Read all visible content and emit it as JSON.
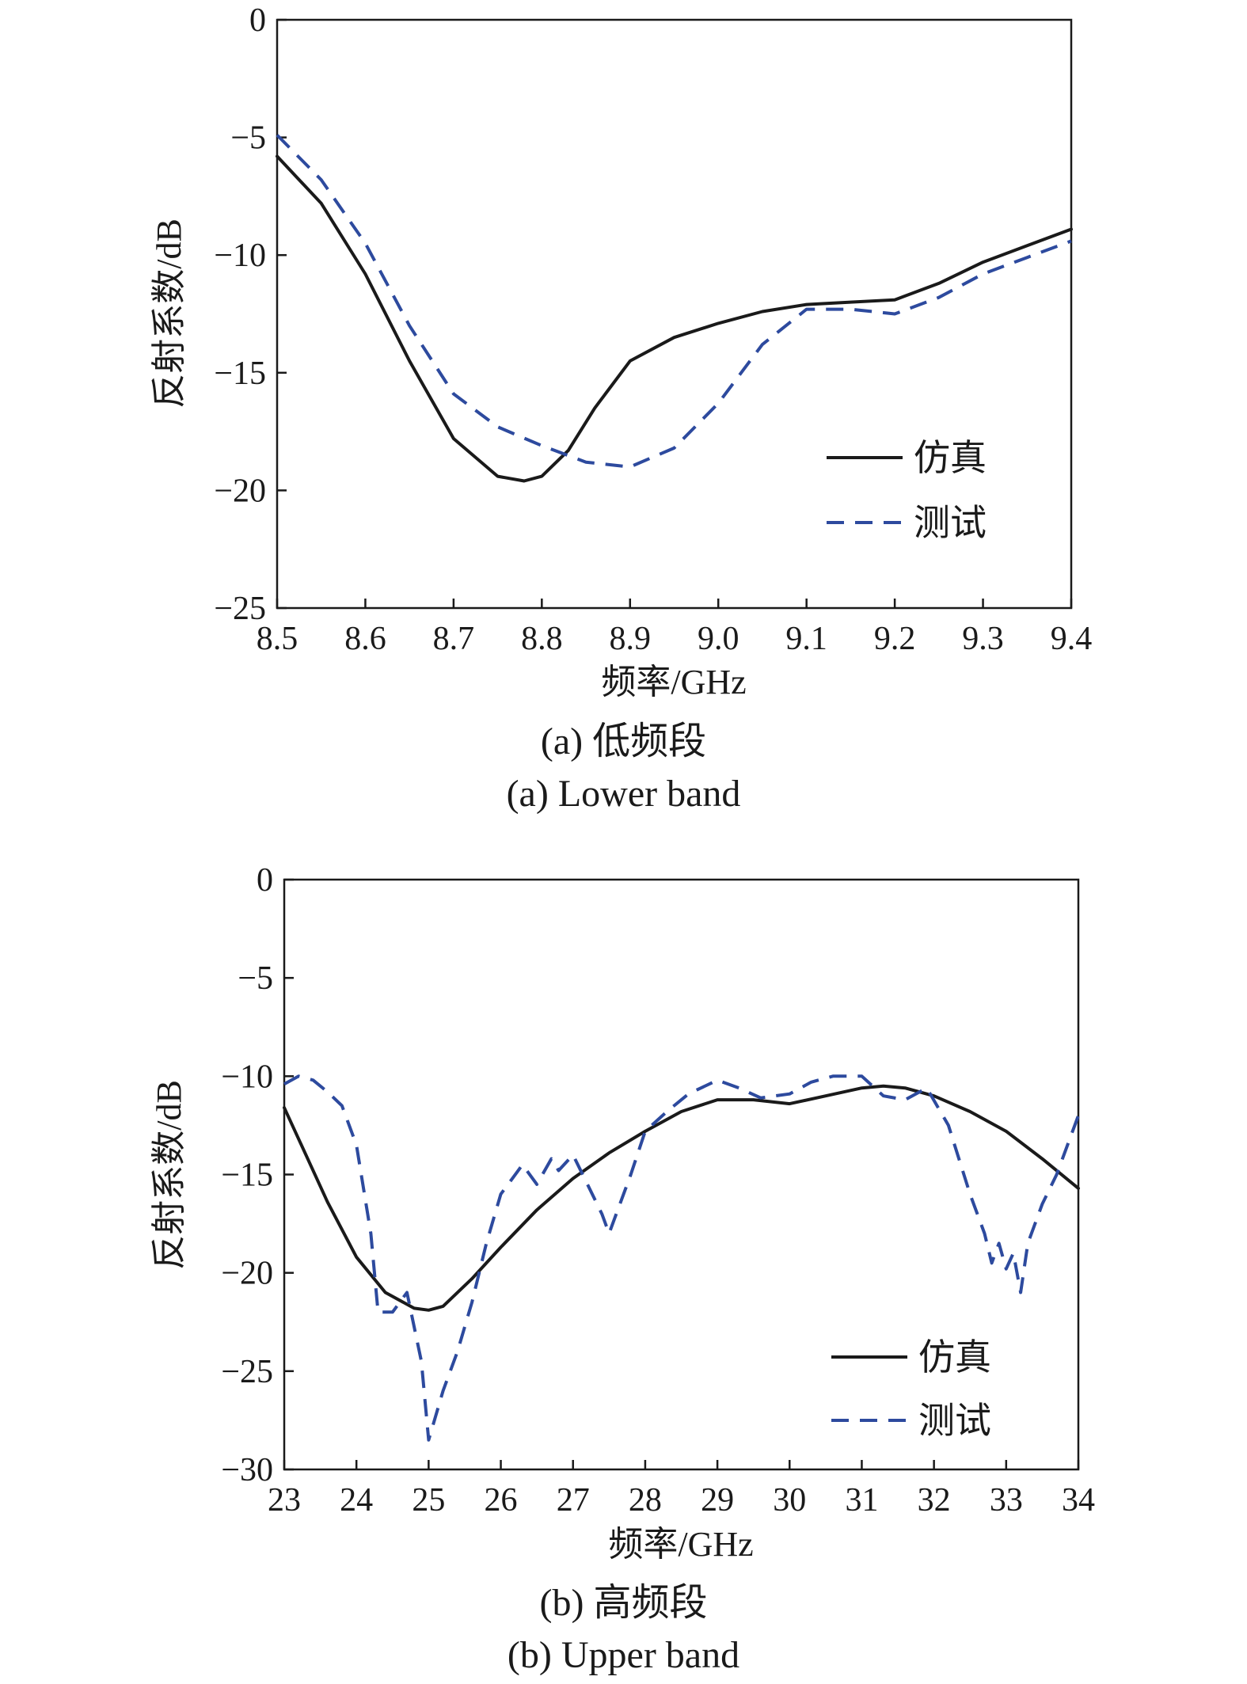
{
  "chart_data": [
    {
      "type": "line",
      "caption_cn": "(a) 低频段",
      "caption_en": "(a) Lower band",
      "xlabel": "频率/GHz",
      "ylabel": "反射系数/dB",
      "xlim": [
        8.5,
        9.4
      ],
      "ylim": [
        -25,
        0
      ],
      "xticks": [
        "8.5",
        "8.6",
        "8.7",
        "8.8",
        "8.9",
        "9.0",
        "9.1",
        "9.2",
        "9.3",
        "9.4"
      ],
      "yticks": [
        "0",
        "−5",
        "−10",
        "−15",
        "−20",
        "−25"
      ],
      "legend_position": "lower-right",
      "series": [
        {
          "name": "仿真",
          "style": "solid",
          "color": "#1a1a1a",
          "x": [
            8.5,
            8.55,
            8.6,
            8.65,
            8.7,
            8.75,
            8.78,
            8.8,
            8.83,
            8.86,
            8.9,
            8.95,
            9.0,
            9.05,
            9.1,
            9.15,
            9.2,
            9.25,
            9.3,
            9.35,
            9.4
          ],
          "y": [
            -5.8,
            -7.8,
            -10.8,
            -14.5,
            -17.8,
            -19.4,
            -19.6,
            -19.4,
            -18.3,
            -16.5,
            -14.5,
            -13.5,
            -12.9,
            -12.4,
            -12.1,
            -12.0,
            -11.9,
            -11.2,
            -10.3,
            -9.6,
            -8.9
          ]
        },
        {
          "name": "测试",
          "style": "dashed",
          "color": "#2d4a9e",
          "x": [
            8.5,
            8.55,
            8.6,
            8.65,
            8.7,
            8.75,
            8.8,
            8.85,
            8.9,
            8.95,
            9.0,
            9.05,
            9.1,
            9.15,
            9.2,
            9.25,
            9.3,
            9.35,
            9.4
          ],
          "y": [
            -4.9,
            -6.8,
            -9.5,
            -13.0,
            -15.9,
            -17.3,
            -18.1,
            -18.8,
            -19.0,
            -18.2,
            -16.3,
            -13.8,
            -12.3,
            -12.3,
            -12.5,
            -11.8,
            -10.8,
            -10.1,
            -9.4
          ]
        }
      ]
    },
    {
      "type": "line",
      "caption_cn": "(b) 高频段",
      "caption_en": "(b) Upper band",
      "xlabel": "频率/GHz",
      "ylabel": "反射系数/dB",
      "xlim": [
        23,
        34
      ],
      "ylim": [
        -30,
        0
      ],
      "xticks": [
        "23",
        "24",
        "25",
        "26",
        "27",
        "28",
        "29",
        "30",
        "31",
        "32",
        "33",
        "34"
      ],
      "yticks": [
        "0",
        "−5",
        "−10",
        "−15",
        "−20",
        "−25",
        "−30"
      ],
      "legend_position": "lower-right",
      "series": [
        {
          "name": "仿真",
          "style": "solid",
          "color": "#1a1a1a",
          "x": [
            23.0,
            23.3,
            23.6,
            24.0,
            24.4,
            24.8,
            25.0,
            25.2,
            25.6,
            26.0,
            26.5,
            27.0,
            27.5,
            28.0,
            28.5,
            29.0,
            29.5,
            30.0,
            30.5,
            31.0,
            31.3,
            31.6,
            32.0,
            32.5,
            33.0,
            33.5,
            34.0
          ],
          "y": [
            -11.6,
            -14.0,
            -16.4,
            -19.2,
            -21.0,
            -21.8,
            -21.9,
            -21.7,
            -20.3,
            -18.7,
            -16.8,
            -15.2,
            -13.9,
            -12.8,
            -11.8,
            -11.2,
            -11.2,
            -11.4,
            -11.0,
            -10.6,
            -10.5,
            -10.6,
            -11.0,
            -11.8,
            -12.8,
            -14.2,
            -15.7
          ]
        },
        {
          "name": "测试",
          "style": "dashed",
          "color": "#2d4a9e",
          "x": [
            23.0,
            23.2,
            23.4,
            23.6,
            23.8,
            24.0,
            24.2,
            24.3,
            24.5,
            24.7,
            24.9,
            25.0,
            25.2,
            25.4,
            25.6,
            25.8,
            26.0,
            26.2,
            26.3,
            26.5,
            26.7,
            26.8,
            27.0,
            27.2,
            27.4,
            27.5,
            27.6,
            27.8,
            28.0,
            28.3,
            28.6,
            29.0,
            29.3,
            29.6,
            30.0,
            30.3,
            30.6,
            31.0,
            31.3,
            31.6,
            31.9,
            32.2,
            32.5,
            32.7,
            32.8,
            32.9,
            33.0,
            33.1,
            33.2,
            33.3,
            33.5,
            33.7,
            34.0
          ],
          "y": [
            -10.4,
            -10.0,
            -10.2,
            -10.8,
            -11.5,
            -13.5,
            -18.0,
            -22.0,
            -22.0,
            -21.0,
            -24.5,
            -28.5,
            -26.0,
            -24.0,
            -21.5,
            -18.5,
            -16.0,
            -15.0,
            -14.5,
            -15.5,
            -14.2,
            -14.8,
            -14.0,
            -15.5,
            -17.0,
            -18.0,
            -17.0,
            -15.0,
            -12.8,
            -11.8,
            -10.9,
            -10.2,
            -10.6,
            -11.1,
            -10.9,
            -10.3,
            -10.0,
            -10.0,
            -11.0,
            -11.2,
            -10.6,
            -12.5,
            -16.0,
            -18.0,
            -19.5,
            -18.5,
            -19.8,
            -19.0,
            -21.0,
            -18.5,
            -16.5,
            -15.0,
            -12.0
          ]
        }
      ]
    }
  ]
}
